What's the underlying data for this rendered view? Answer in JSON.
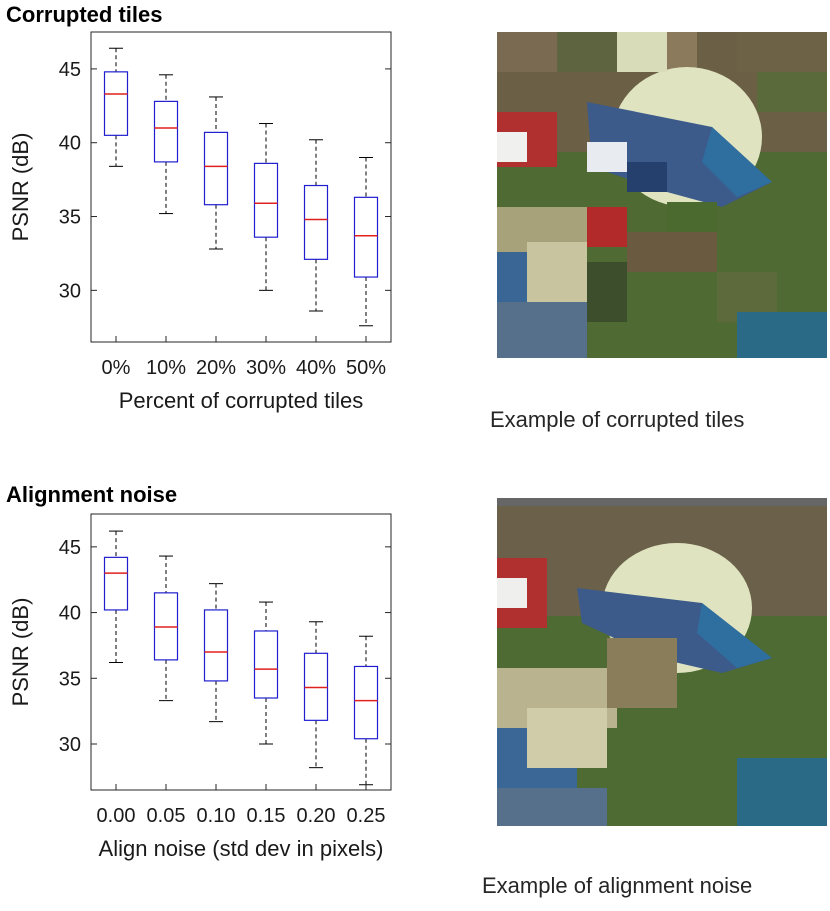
{
  "panels": [
    {
      "title": "Corrupted tiles",
      "caption": "Example of corrupted tiles",
      "chart_data": {
        "type": "box",
        "title": "Corrupted tiles",
        "xlabel": "Percent of corrupted tiles",
        "ylabel": "PSNR (dB)",
        "ylim": [
          26.5,
          47.5
        ],
        "yticks": [
          30,
          35,
          40,
          45
        ],
        "categories": [
          "0%",
          "10%",
          "20%",
          "30%",
          "40%",
          "50%"
        ],
        "boxes": [
          {
            "whisker_low": 38.4,
            "q1": 40.5,
            "median": 43.3,
            "q3": 44.8,
            "whisker_high": 46.4
          },
          {
            "whisker_low": 35.2,
            "q1": 38.7,
            "median": 41.0,
            "q3": 42.8,
            "whisker_high": 44.6
          },
          {
            "whisker_low": 32.8,
            "q1": 35.8,
            "median": 38.4,
            "q3": 40.7,
            "whisker_high": 43.1
          },
          {
            "whisker_low": 30.0,
            "q1": 33.6,
            "median": 35.9,
            "q3": 38.6,
            "whisker_high": 41.3
          },
          {
            "whisker_low": 28.6,
            "q1": 32.1,
            "median": 34.8,
            "q3": 37.1,
            "whisker_high": 40.2
          },
          {
            "whisker_low": 27.6,
            "q1": 30.9,
            "median": 33.7,
            "q3": 36.3,
            "whisker_high": 39.0
          }
        ],
        "grid": false,
        "colors": {
          "box": "#1f1fd0",
          "median": "#e02020",
          "whisker": "#000000"
        }
      }
    },
    {
      "title": "Alignment noise",
      "caption": "Example of alignment noise",
      "chart_data": {
        "type": "box",
        "title": "Alignment noise",
        "xlabel": "Align noise (std dev in pixels)",
        "ylabel": "PSNR (dB)",
        "ylim": [
          26.5,
          47.5
        ],
        "yticks": [
          30,
          35,
          40,
          45
        ],
        "categories": [
          "0.00",
          "0.05",
          "0.10",
          "0.15",
          "0.20",
          "0.25"
        ],
        "boxes": [
          {
            "whisker_low": 36.2,
            "q1": 40.2,
            "median": 43.0,
            "q3": 44.2,
            "whisker_high": 46.2
          },
          {
            "whisker_low": 33.3,
            "q1": 36.4,
            "median": 38.9,
            "q3": 41.5,
            "whisker_high": 44.3
          },
          {
            "whisker_low": 31.7,
            "q1": 34.8,
            "median": 37.0,
            "q3": 40.2,
            "whisker_high": 42.2
          },
          {
            "whisker_low": 30.0,
            "q1": 33.5,
            "median": 35.7,
            "q3": 38.6,
            "whisker_high": 40.8
          },
          {
            "whisker_low": 28.2,
            "q1": 31.8,
            "median": 34.3,
            "q3": 36.9,
            "whisker_high": 39.3
          },
          {
            "whisker_low": 26.9,
            "q1": 30.4,
            "median": 33.3,
            "q3": 35.9,
            "whisker_high": 38.2
          }
        ],
        "grid": false,
        "colors": {
          "box": "#1f1fd0",
          "median": "#e02020",
          "whisker": "#000000"
        }
      }
    }
  ]
}
